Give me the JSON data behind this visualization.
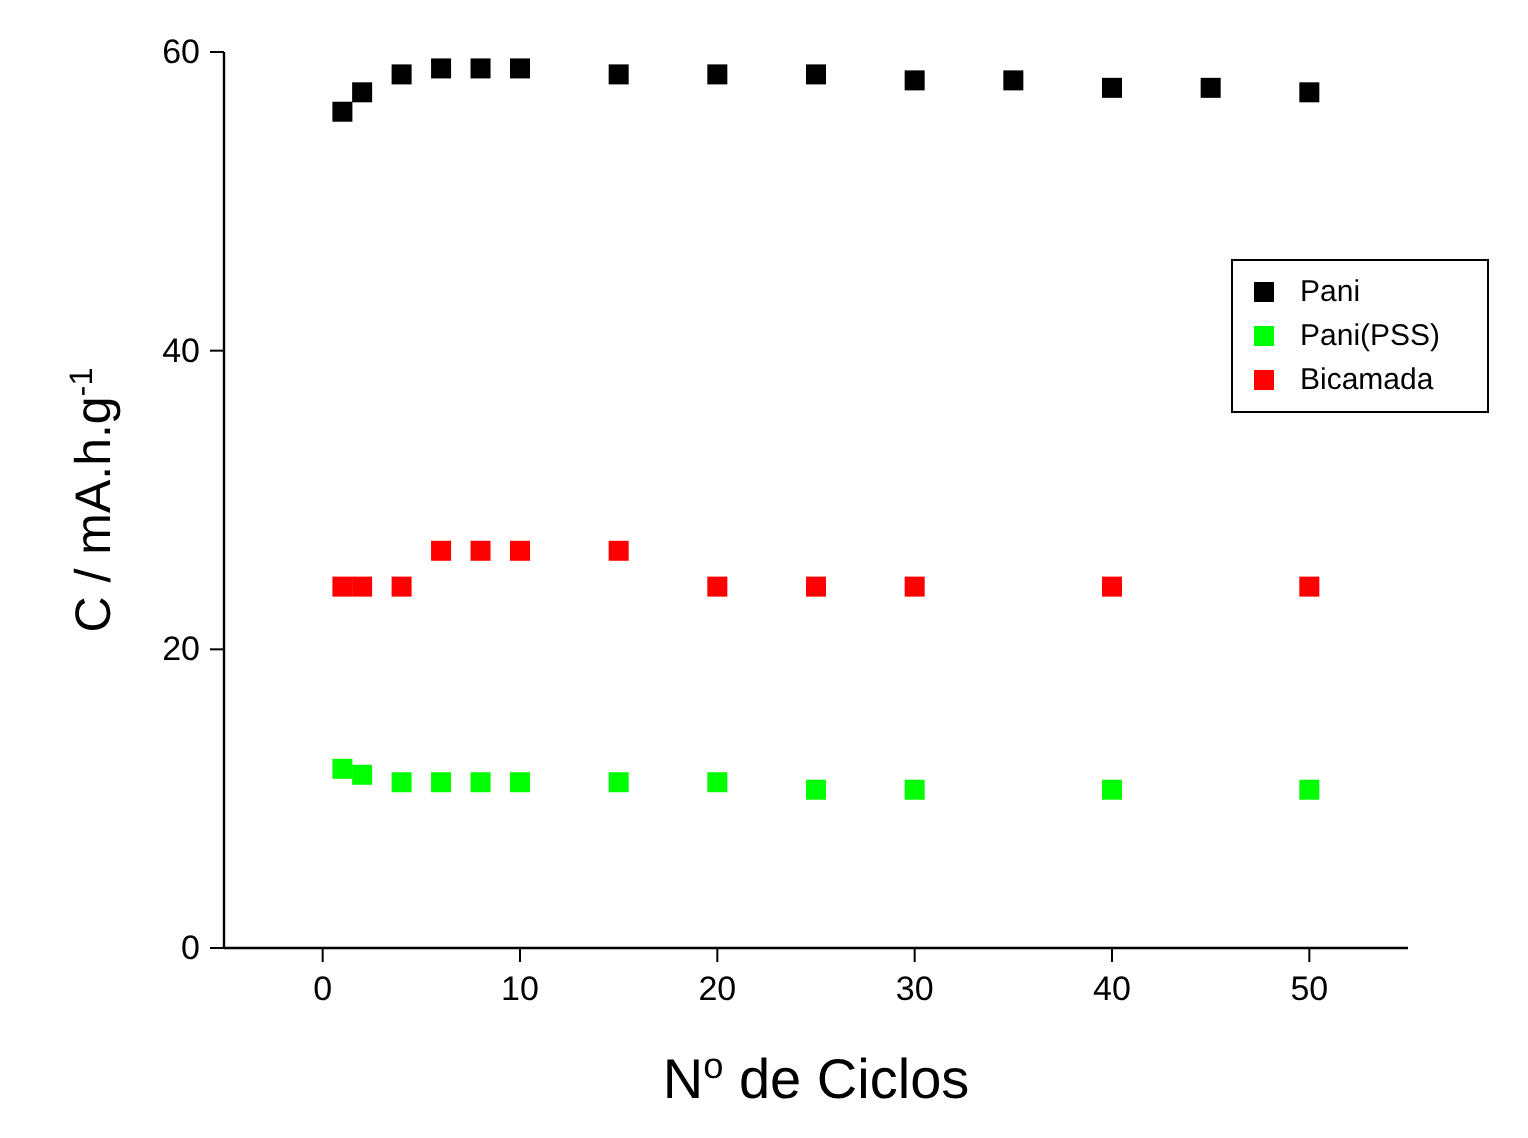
{
  "chart_data": {
    "type": "scatter",
    "xlabel": "N$^{o}$ de Ciclos",
    "ylabel": "C / mA.h.g$^{-1}$",
    "xlim": [
      -5,
      55
    ],
    "xticks": [
      0,
      10,
      20,
      30,
      40,
      50
    ],
    "ylim": [
      0,
      60
    ],
    "yticks": [
      0,
      20,
      40,
      60
    ],
    "marker": "square",
    "legend": "top right",
    "grid": false,
    "series": [
      {
        "name": "Pani",
        "color": "#000000",
        "x": [
          1,
          2,
          4,
          6,
          8,
          10,
          15,
          20,
          25,
          30,
          35,
          40,
          45,
          50
        ],
        "values": [
          56.0,
          57.3,
          58.5,
          58.9,
          58.9,
          58.9,
          58.5,
          58.5,
          58.5,
          58.1,
          58.1,
          57.6,
          57.6,
          57.3
        ]
      },
      {
        "name": "Pani(PSS)",
        "color": "#00ff00",
        "x": [
          1,
          2,
          4,
          6,
          8,
          10,
          15,
          20,
          25,
          30,
          40,
          50
        ],
        "values": [
          12.0,
          11.6,
          11.1,
          11.1,
          11.1,
          11.1,
          11.1,
          11.1,
          10.6,
          10.6,
          10.6,
          10.6
        ]
      },
      {
        "name": "Bicamada",
        "color": "#ff0000",
        "x": [
          1,
          2,
          4,
          6,
          8,
          10,
          15,
          20,
          25,
          30,
          40,
          50
        ],
        "values": [
          24.2,
          24.2,
          24.2,
          26.6,
          26.6,
          26.6,
          26.6,
          24.2,
          24.2,
          24.2,
          24.2,
          24.2
        ]
      }
    ]
  }
}
